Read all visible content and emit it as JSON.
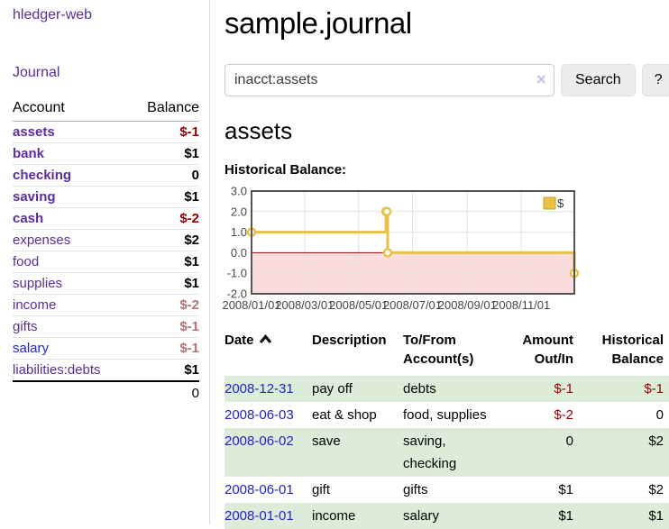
{
  "colors": {
    "link_purple": "#5e2ca2",
    "link_blue": "#2222cc",
    "negative_red": "#990000",
    "negative_muted": "#b87272",
    "row_stripe_green": "#ddecd9",
    "series_gold": "#e9c144",
    "negative_region_pink": "#fadcdc",
    "zero_line_red": "#a00000",
    "button_gray": "#ececec"
  },
  "sidebar": {
    "brand": "hledger-web",
    "nav_journal": "Journal",
    "accounts": {
      "header_account": "Account",
      "header_balance": "Balance",
      "rows": [
        {
          "name": "assets",
          "depth": 1,
          "bold": true,
          "name_color": "purple",
          "balance": "$-1",
          "balance_tone": "negative"
        },
        {
          "name": "bank",
          "depth": 2,
          "bold": true,
          "name_color": "purple",
          "balance": "$1",
          "balance_tone": "normal"
        },
        {
          "name": "checking",
          "depth": 3,
          "bold": true,
          "name_color": "purple",
          "balance": "0",
          "balance_tone": "normal"
        },
        {
          "name": "saving",
          "depth": 3,
          "bold": true,
          "name_color": "purple",
          "balance": "$1",
          "balance_tone": "normal"
        },
        {
          "name": "cash",
          "depth": 2,
          "bold": true,
          "name_color": "purple",
          "balance": "$-2",
          "balance_tone": "negative"
        },
        {
          "name": "expenses",
          "depth": 1,
          "bold": false,
          "name_color": "purple",
          "balance": "$2",
          "balance_tone": "normal"
        },
        {
          "name": "food",
          "depth": 2,
          "bold": false,
          "name_color": "purple",
          "balance": "$1",
          "balance_tone": "normal"
        },
        {
          "name": "supplies",
          "depth": 2,
          "bold": false,
          "name_color": "purple",
          "balance": "$1",
          "balance_tone": "normal"
        },
        {
          "name": "income",
          "depth": 1,
          "bold": false,
          "name_color": "purple",
          "balance": "$-2",
          "balance_tone": "negative-muted"
        },
        {
          "name": "gifts",
          "depth": 2,
          "bold": false,
          "name_color": "purple",
          "balance": "$-1",
          "balance_tone": "negative-muted"
        },
        {
          "name": "salary",
          "depth": 2,
          "bold": false,
          "name_color": "blue",
          "balance": "$-1",
          "balance_tone": "negative-muted"
        },
        {
          "name": "liabilities:debts",
          "depth": 1,
          "bold": false,
          "name_color": "purple",
          "balance": "$1",
          "balance_tone": "normal"
        }
      ],
      "total": "0"
    }
  },
  "main": {
    "title": "sample.journal",
    "search": {
      "value": "inacct:assets",
      "clear_icon": "×",
      "button_label": "Search",
      "help_label": "?"
    },
    "account_heading": "assets",
    "register_table": {
      "headers": [
        {
          "lines": [
            "Date"
          ],
          "align": "left",
          "sortable": true,
          "sort_direction": "ascending"
        },
        {
          "lines": [
            "Description"
          ],
          "align": "left"
        },
        {
          "lines": [
            "To/From",
            "Account(s)"
          ],
          "align": "left"
        },
        {
          "lines": [
            "Amount",
            "Out/In"
          ],
          "align": "right"
        },
        {
          "lines": [
            "Historical",
            "Balance"
          ],
          "align": "right"
        }
      ],
      "rows": [
        {
          "date": "2008-12-31",
          "description": "pay off",
          "accounts": [
            "debts"
          ],
          "amount": "$-1",
          "amount_negative": true,
          "balance": "$-1",
          "balance_negative": true,
          "striped": true
        },
        {
          "date": "2008-06-03",
          "description": "eat & shop",
          "accounts": [
            "food, supplies"
          ],
          "amount": "$-2",
          "amount_negative": true,
          "balance": "0",
          "balance_negative": false,
          "striped": false
        },
        {
          "date": "2008-06-02",
          "description": "save",
          "accounts": [
            "saving,",
            "checking"
          ],
          "amount": "0",
          "amount_negative": false,
          "balance": "$2",
          "balance_negative": false,
          "striped": true
        },
        {
          "date": "2008-06-01",
          "description": "gift",
          "accounts": [
            "gifts"
          ],
          "amount": "$1",
          "amount_negative": false,
          "balance": "$2",
          "balance_negative": false,
          "striped": false
        },
        {
          "date": "2008-01-01",
          "description": "income",
          "accounts": [
            "salary"
          ],
          "amount": "$1",
          "amount_negative": false,
          "balance": "$1",
          "balance_negative": false,
          "striped": true
        }
      ]
    }
  },
  "chart_data": {
    "type": "line",
    "title": "Historical Balance:",
    "step": true,
    "x_range": [
      "2008-01-01",
      "2008-12-31"
    ],
    "ylim": [
      -2,
      3
    ],
    "y_ticks": [
      3,
      2,
      1,
      0,
      -1,
      -2
    ],
    "x_ticks": [
      {
        "date": "2008-01-01",
        "label": "2008/01/01"
      },
      {
        "date": "2008-03-01",
        "label": "2008/03/01"
      },
      {
        "date": "2008-05-01",
        "label": "2008/05/01"
      },
      {
        "date": "2008-07-01",
        "label": "2008/07/01"
      },
      {
        "date": "2008-09-01",
        "label": "2008/09/01"
      },
      {
        "date": "2008-11-01",
        "label": "2008/11/01"
      }
    ],
    "series": [
      {
        "name": "$",
        "color": "#e9c144",
        "points": [
          {
            "date": "2008-01-01",
            "value": 1
          },
          {
            "date": "2008-06-01",
            "value": 2
          },
          {
            "date": "2008-06-02",
            "value": 2
          },
          {
            "date": "2008-06-03",
            "value": 0
          },
          {
            "date": "2008-12-31",
            "value": -1
          }
        ]
      }
    ],
    "legend_position": "top-right",
    "grid": true,
    "negative_fill": "#fadcdc",
    "zero_line_color": "#a00000"
  }
}
